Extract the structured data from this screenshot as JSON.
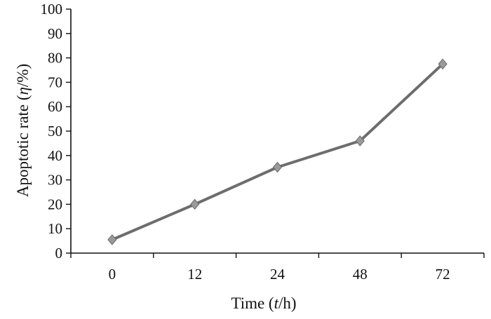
{
  "chart_data": {
    "type": "line",
    "categories": [
      "0",
      "12",
      "24",
      "48",
      "72"
    ],
    "series": [
      {
        "values": [
          5.5,
          20,
          35.2,
          46,
          77.5
        ]
      }
    ],
    "xlabel": "Time (t/h)",
    "xlabel_parts": {
      "prefix": "Time (",
      "var": "t",
      "suffix": "/h)"
    },
    "ylabel": "Apoptotic rate (η/%)",
    "ylabel_parts": {
      "prefix": "Apoptotic rate (",
      "var": "η",
      "suffix": "/%)"
    },
    "ylim": [
      0,
      100
    ],
    "yticks": [
      "0",
      "10",
      "20",
      "30",
      "40",
      "50",
      "60",
      "70",
      "80",
      "90",
      "100"
    ],
    "grid": false,
    "legend": "none",
    "colors": {
      "line": "#6d6d6d",
      "marker": "#9a9a9a",
      "axis": "#111111"
    }
  }
}
